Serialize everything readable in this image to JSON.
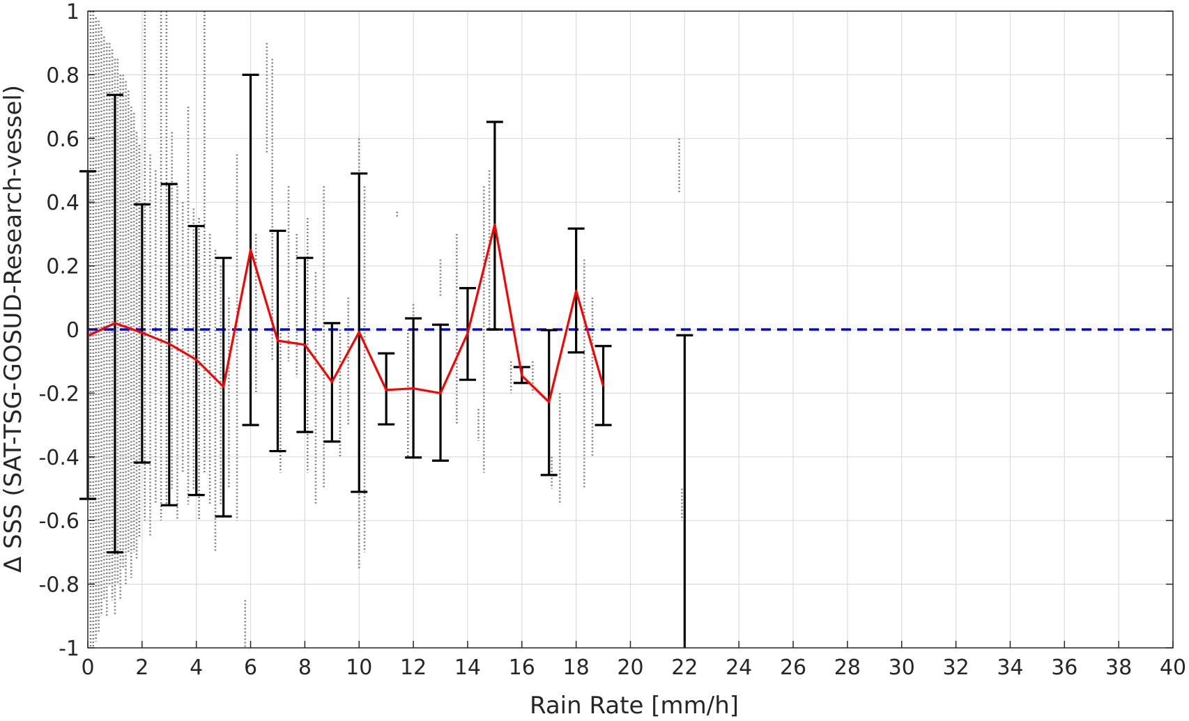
{
  "chart_data": {
    "type": "scatter",
    "xlabel": "Rain Rate [mm/h]",
    "ylabel": "Δ SSS (SAT-TSG-GOSUD-Research-vessel)",
    "xlim": [
      0,
      40
    ],
    "ylim": [
      -1,
      1
    ],
    "xticks": [
      "0",
      "2",
      "4",
      "6",
      "8",
      "10",
      "12",
      "14",
      "16",
      "18",
      "20",
      "22",
      "24",
      "26",
      "28",
      "30",
      "32",
      "34",
      "36",
      "38",
      "40"
    ],
    "yticks": [
      "-1",
      "-0.8",
      "-0.6",
      "-0.4",
      "-0.2",
      "0",
      "0.2",
      "0.4",
      "0.6",
      "0.8",
      "1"
    ],
    "grid": true,
    "colors": {
      "scatter": "#808080",
      "mean_line": "#ff0000",
      "error_bars": "#000000",
      "reference_line": "#0000ff"
    },
    "series": [
      {
        "kind": "mean",
        "x": [
          0,
          1,
          2,
          3,
          4,
          5,
          6,
          7,
          8,
          9,
          10,
          11,
          12,
          13,
          14,
          15,
          16,
          17,
          18,
          19
        ],
        "y": [
          -0.02,
          0.02,
          -0.01,
          -0.045,
          -0.095,
          -0.18,
          0.25,
          -0.035,
          -0.048,
          -0.165,
          -0.008,
          -0.19,
          -0.185,
          -0.2,
          -0.012,
          0.33,
          -0.145,
          -0.228,
          0.122,
          -0.178
        ]
      },
      {
        "kind": "error_bars",
        "x": [
          0,
          1,
          2,
          3,
          4,
          5,
          6,
          7,
          8,
          9,
          10,
          11,
          12,
          13,
          14,
          15,
          16,
          17,
          18,
          19,
          22
        ],
        "lower": [
          -0.532,
          -0.7,
          -0.418,
          -0.552,
          -0.52,
          -0.587,
          -0.3,
          -0.382,
          -0.322,
          -0.352,
          -0.51,
          -0.298,
          -0.402,
          -0.412,
          -0.158,
          0.0,
          -0.168,
          -0.457,
          -0.072,
          -0.3,
          -1.0
        ],
        "upper": [
          0.497,
          0.737,
          0.393,
          0.457,
          0.325,
          0.225,
          0.8,
          0.31,
          0.225,
          0.02,
          0.49,
          -0.075,
          0.035,
          0.015,
          0.13,
          0.652,
          -0.118,
          -0.002,
          0.317,
          -0.052,
          -0.018
        ]
      },
      {
        "kind": "reference",
        "y": 0
      },
      {
        "kind": "scatter_columns",
        "columns": [
          {
            "x": 0.1,
            "ymin": -1.0,
            "ymax": 1.0
          },
          {
            "x": 0.2,
            "ymin": -1.0,
            "ymax": 1.0
          },
          {
            "x": 0.3,
            "ymin": -0.98,
            "ymax": 0.98
          },
          {
            "x": 0.4,
            "ymin": -0.95,
            "ymax": 0.97
          },
          {
            "x": 0.5,
            "ymin": -0.9,
            "ymax": 0.95
          },
          {
            "x": 0.6,
            "ymin": -0.85,
            "ymax": 0.92
          },
          {
            "x": 0.7,
            "ymin": -0.9,
            "ymax": 0.9
          },
          {
            "x": 0.8,
            "ymin": -0.8,
            "ymax": 0.9
          },
          {
            "x": 0.9,
            "ymin": -0.85,
            "ymax": 0.88
          },
          {
            "x": 1.0,
            "ymin": -0.9,
            "ymax": 0.85
          },
          {
            "x": 1.1,
            "ymin": -0.8,
            "ymax": 0.85
          },
          {
            "x": 1.2,
            "ymin": -0.85,
            "ymax": 0.8
          },
          {
            "x": 1.3,
            "ymin": -0.75,
            "ymax": 0.8
          },
          {
            "x": 1.4,
            "ymin": -0.8,
            "ymax": 0.78
          },
          {
            "x": 1.5,
            "ymin": -0.7,
            "ymax": 0.75
          },
          {
            "x": 1.6,
            "ymin": -0.78,
            "ymax": 0.7
          },
          {
            "x": 1.7,
            "ymin": -0.7,
            "ymax": 0.68
          },
          {
            "x": 1.8,
            "ymin": -0.72,
            "ymax": 0.62
          },
          {
            "x": 1.9,
            "ymin": -0.65,
            "ymax": 0.58
          },
          {
            "x": 2.1,
            "ymin": -0.6,
            "ymax": 1.0
          },
          {
            "x": 2.3,
            "ymin": -0.65,
            "ymax": 0.55
          },
          {
            "x": 2.5,
            "ymin": -0.55,
            "ymax": 0.5
          },
          {
            "x": 2.7,
            "ymin": -0.6,
            "ymax": 1.0
          },
          {
            "x": 2.9,
            "ymin": -0.55,
            "ymax": 1.0
          },
          {
            "x": 3.1,
            "ymin": -0.5,
            "ymax": 0.62
          },
          {
            "x": 3.3,
            "ymin": -0.6,
            "ymax": 0.45
          },
          {
            "x": 3.5,
            "ymin": -0.45,
            "ymax": 0.4
          },
          {
            "x": 3.7,
            "ymin": -0.55,
            "ymax": 0.7
          },
          {
            "x": 3.9,
            "ymin": -0.5,
            "ymax": 0.38
          },
          {
            "x": 4.1,
            "ymin": -0.6,
            "ymax": 0.35
          },
          {
            "x": 4.3,
            "ymin": -0.45,
            "ymax": 1.0
          },
          {
            "x": 4.5,
            "ymin": -0.55,
            "ymax": 0.3
          },
          {
            "x": 4.7,
            "ymin": -0.7,
            "ymax": 0.25
          },
          {
            "x": 4.9,
            "ymin": -0.55,
            "ymax": 0.2
          },
          {
            "x": 5.2,
            "ymin": -0.5,
            "ymax": 0.1
          },
          {
            "x": 5.5,
            "ymin": -0.6,
            "ymax": 0.55
          },
          {
            "x": 5.8,
            "ymin": -1.0,
            "ymax": -0.85
          },
          {
            "x": 6.2,
            "ymin": -0.2,
            "ymax": 0.3
          },
          {
            "x": 6.6,
            "ymin": 0.55,
            "ymax": 0.9
          },
          {
            "x": 6.8,
            "ymin": -0.1,
            "ymax": 0.85
          },
          {
            "x": 7.1,
            "ymin": -0.45,
            "ymax": 0.0
          },
          {
            "x": 7.4,
            "ymin": -0.1,
            "ymax": 0.45
          },
          {
            "x": 7.7,
            "ymin": -0.15,
            "ymax": 0.3
          },
          {
            "x": 8.1,
            "ymin": -0.45,
            "ymax": 0.35
          },
          {
            "x": 8.4,
            "ymin": -0.55,
            "ymax": 0.18
          },
          {
            "x": 8.7,
            "ymin": -0.5,
            "ymax": 0.45
          },
          {
            "x": 9.3,
            "ymin": -0.4,
            "ymax": 0.0
          },
          {
            "x": 9.6,
            "ymin": -0.3,
            "ymax": 0.1
          },
          {
            "x": 10.0,
            "ymin": -0.75,
            "ymax": 0.6
          },
          {
            "x": 10.2,
            "ymin": -0.7,
            "ymax": 0.45
          },
          {
            "x": 11.0,
            "ymin": -0.3,
            "ymax": -0.1
          },
          {
            "x": 11.4,
            "ymin": 0.35,
            "ymax": 0.37
          },
          {
            "x": 11.8,
            "ymin": -0.4,
            "ymax": 0.0
          },
          {
            "x": 12.0,
            "ymin": -0.38,
            "ymax": 0.08
          },
          {
            "x": 13.0,
            "ymin": 0.1,
            "ymax": 0.22
          },
          {
            "x": 13.6,
            "ymin": -0.3,
            "ymax": 0.3
          },
          {
            "x": 14.4,
            "ymin": -0.35,
            "ymax": -0.25
          },
          {
            "x": 14.6,
            "ymin": -0.45,
            "ymax": 0.45
          },
          {
            "x": 14.8,
            "ymin": 0.0,
            "ymax": 0.5
          },
          {
            "x": 15.6,
            "ymin": -0.2,
            "ymax": -0.1
          },
          {
            "x": 16.4,
            "ymin": -0.2,
            "ymax": -0.1
          },
          {
            "x": 17.1,
            "ymin": -0.5,
            "ymax": -0.4
          },
          {
            "x": 17.4,
            "ymin": -0.55,
            "ymax": -0.2
          },
          {
            "x": 18.3,
            "ymin": -0.5,
            "ymax": 0.22
          },
          {
            "x": 18.6,
            "ymin": -0.4,
            "ymax": 0.1
          },
          {
            "x": 21.8,
            "ymin": 0.43,
            "ymax": 0.6
          },
          {
            "x": 21.9,
            "ymin": -0.6,
            "ymax": -0.5
          }
        ]
      }
    ]
  }
}
